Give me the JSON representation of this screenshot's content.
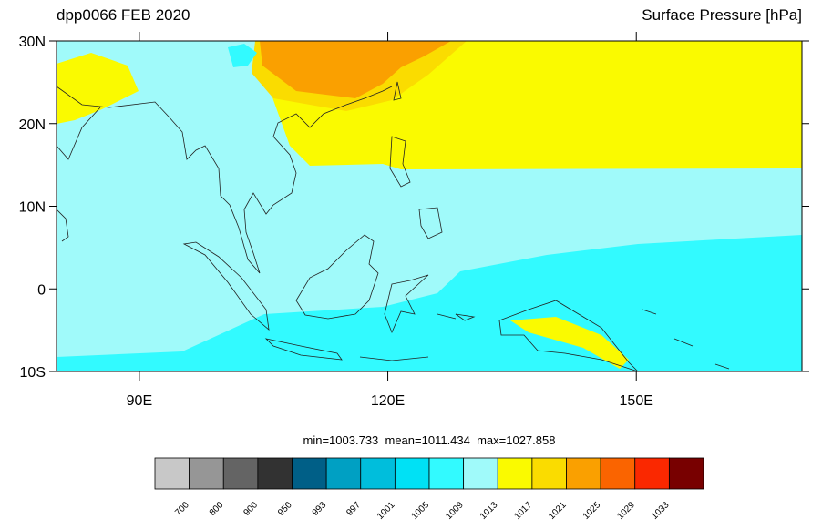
{
  "title_left": "dpp0066 FEB 2020",
  "title_right": "Surface Pressure [hPa]",
  "stats": "min=1003.733  mean=1011.434  max=1027.858",
  "map": {
    "xlim": [
      80,
      170
    ],
    "ylim": [
      -10,
      30
    ],
    "xticks": [
      {
        "value": 90,
        "label": "90E"
      },
      {
        "value": 120,
        "label": "120E"
      },
      {
        "value": 150,
        "label": "150E"
      }
    ],
    "yticks": [
      {
        "value": -10,
        "label": "10S"
      },
      0,
      {
        "value": 10,
        "label": "10N"
      },
      {
        "value": 20,
        "label": "20N"
      },
      {
        "value": 30,
        "label": "30N"
      }
    ]
  },
  "colorbar": {
    "levels": [
      700,
      800,
      900,
      950,
      993,
      997,
      1001,
      1005,
      1009,
      1013,
      1017,
      1021,
      1025,
      1029,
      1033
    ],
    "colors": [
      "#c8c8c8",
      "#969696",
      "#646464",
      "#323232",
      "#005f87",
      "#00a0c3",
      "#00bedc",
      "#00e1f5",
      "#32faff",
      "#a0fafa",
      "#fafa00",
      "#fadc00",
      "#faa000",
      "#fa6400",
      "#fa2800",
      "#780000"
    ]
  }
}
